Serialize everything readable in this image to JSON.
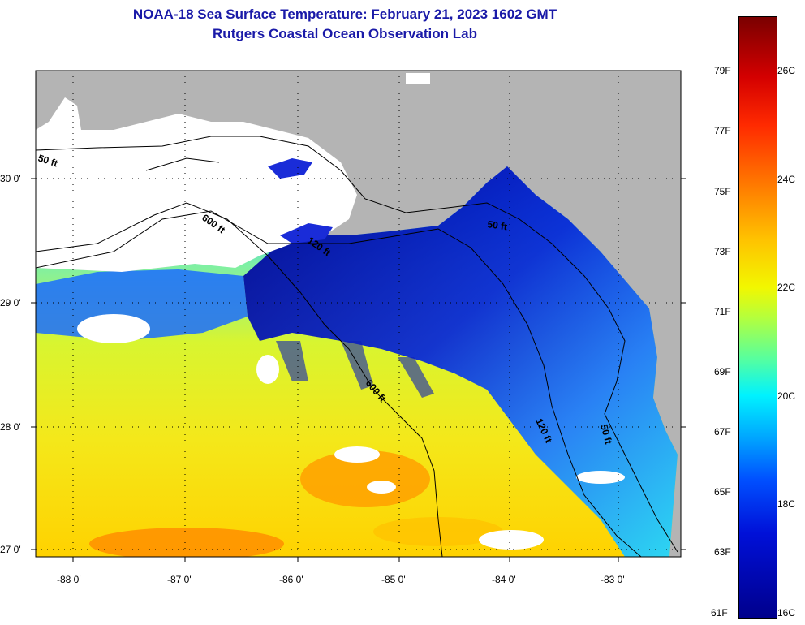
{
  "header": {
    "title": "NOAA-18 Sea Surface Temperature:  February 21, 2023 1602 GMT",
    "subtitle": "Rutgers Coastal Ocean Observation Lab"
  },
  "map": {
    "lat_labels": [
      "30 0'",
      "29 0'",
      "28 0'",
      "27 0'"
    ],
    "lon_labels": [
      "-88 0'",
      "-87 0'",
      "-86 0'",
      "-85 0'",
      "-84 0'",
      "-83 0'"
    ],
    "depth_labels": [
      "50 ft",
      "600 ft",
      "120 ft",
      "50 ft",
      "600 ft",
      "120 ft",
      "50 ft"
    ],
    "colors": {
      "land": "#b4b4b4",
      "cloud": "#ffffff",
      "cold": "#00008c",
      "warm": "#ffa000"
    }
  },
  "colorbar": {
    "fahrenheit": [
      "79F",
      "77F",
      "75F",
      "73F",
      "71F",
      "69F",
      "67F",
      "65F",
      "63F",
      "61F"
    ],
    "celsius": [
      "26C",
      "24C",
      "22C",
      "20C",
      "18C",
      "16C"
    ]
  }
}
